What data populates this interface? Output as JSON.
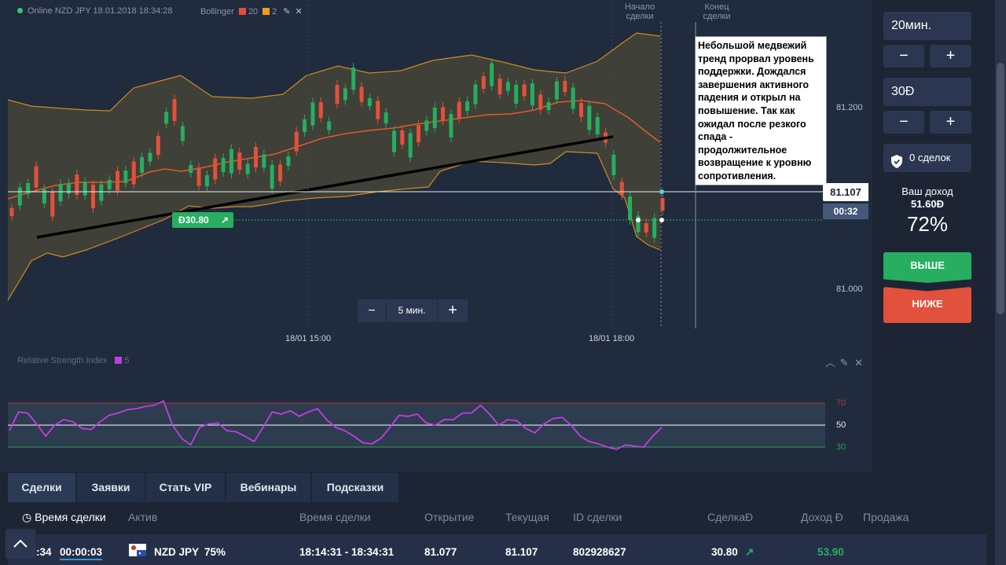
{
  "chart_header": {
    "asset_line": "Online NZD JPY 18.01.2018 18:34:28",
    "indicator": "Bollinger",
    "param1": "20",
    "param2": "2",
    "color_param1": "#e74c3c",
    "color_param2": "#f39c12"
  },
  "markers": {
    "start_label": "Начало сделки",
    "end_label": "Конец сделки"
  },
  "annotation_note": "Небольшой медвежий тренд прорвал уровень поддержки. Дождался завершения активного падения и открыл на повышение. Так как ожидал после резкого спада - продолжительное возвращение к уровню сопротивления.",
  "price_tag": "81.107",
  "timer_tag": "00:32",
  "deal_tag": "Ɖ30.80",
  "chart_data": [
    {
      "type": "candlestick",
      "title": "",
      "y_ticks": [
        "81.200",
        "81.000"
      ],
      "x_ticks": [
        "18/01 15:00",
        "18/01 18:00"
      ],
      "current_price": 81.107,
      "open_price": 81.077
    },
    {
      "type": "line",
      "title": "Relative Strength Index",
      "period": "5",
      "levels": [
        "70",
        "50",
        "30"
      ],
      "values": [
        45,
        62,
        61,
        51,
        40,
        50,
        55,
        53,
        47,
        46,
        53,
        59,
        61,
        64,
        65,
        67,
        68,
        72,
        50,
        38,
        32,
        48,
        51,
        52,
        45,
        44,
        40,
        35,
        48,
        62,
        60,
        63,
        58,
        62,
        65,
        55,
        48,
        45,
        40,
        34,
        33,
        38,
        48,
        59,
        58,
        60,
        52,
        50,
        55,
        55,
        61,
        61,
        68,
        60,
        50,
        55,
        54,
        47,
        43,
        51,
        56,
        57,
        50,
        40,
        35,
        33,
        30,
        28,
        32,
        31,
        30,
        40,
        48
      ]
    }
  ],
  "zoom": {
    "minus": "−",
    "label": "5 мин.",
    "plus": "+"
  },
  "right_panel": {
    "time_value": "20мин.",
    "amount_value": "30Ɖ",
    "minus": "−",
    "plus": "+",
    "deals_label": "0 сделок",
    "income_label": "Ваш доход",
    "income_value": "51.60Ɖ",
    "percent": "72%",
    "higher_label": "ВЫШЕ",
    "lower_label": "НИЖЕ",
    "higher_color": "#27ae60",
    "lower_color": "#e2513b"
  },
  "tabs": [
    "Сделки",
    "Заявки",
    "Стать VIP",
    "Вебинары",
    "Подсказки"
  ],
  "table": {
    "headers": [
      "Время сделки",
      "Актив",
      "Время сделки",
      "Открытие",
      "Текущая",
      "ID сделки",
      "СделкаƉ",
      "Доход Ɖ",
      "Продажа"
    ],
    "row": {
      "time_left": ":34",
      "timer": "00:00:03",
      "asset": "NZD JPY",
      "percent": "75%",
      "period": "18:14:31 - 18:34:31",
      "open": "81.077",
      "current": "81.107",
      "id": "802928627",
      "amount": "30.80",
      "income": "53.90"
    }
  }
}
